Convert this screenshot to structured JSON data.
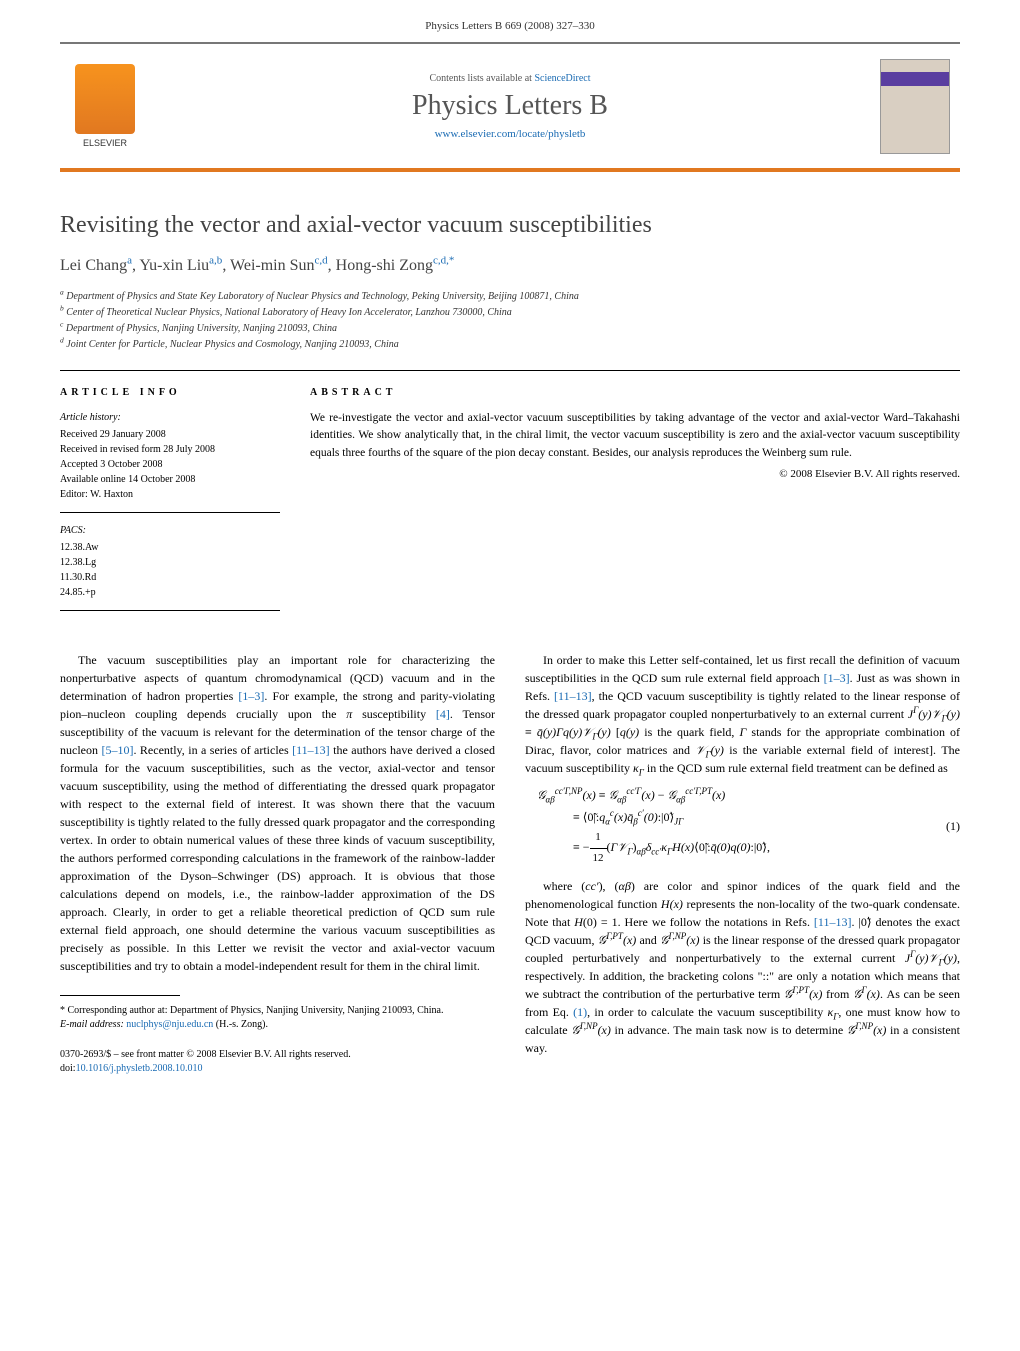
{
  "header": {
    "citation": "Physics Letters B 669 (2008) 327–330"
  },
  "banner": {
    "contents_prefix": "Contents lists available at ",
    "contents_link": "ScienceDirect",
    "journal_title": "Physics Letters B",
    "journal_url": "www.elsevier.com/locate/physletb",
    "publisher": "ELSEVIER",
    "cover_label": "PHYSICS LETTERS B"
  },
  "article": {
    "title": "Revisiting the vector and axial-vector vacuum susceptibilities"
  },
  "authors": [
    {
      "name": "Lei Chang",
      "aff": "a"
    },
    {
      "name": "Yu-xin Liu",
      "aff": "a,b"
    },
    {
      "name": "Wei-min Sun",
      "aff": "c,d"
    },
    {
      "name": "Hong-shi Zong",
      "aff": "c,d,*"
    }
  ],
  "affiliations": [
    {
      "key": "a",
      "text": "Department of Physics and State Key Laboratory of Nuclear Physics and Technology, Peking University, Beijing 100871, China"
    },
    {
      "key": "b",
      "text": "Center of Theoretical Nuclear Physics, National Laboratory of Heavy Ion Accelerator, Lanzhou 730000, China"
    },
    {
      "key": "c",
      "text": "Department of Physics, Nanjing University, Nanjing 210093, China"
    },
    {
      "key": "d",
      "text": "Joint Center for Particle, Nuclear Physics and Cosmology, Nanjing 210093, China"
    }
  ],
  "article_info": {
    "heading": "ARTICLE INFO",
    "history_label": "Article history:",
    "history": [
      "Received 29 January 2008",
      "Received in revised form 28 July 2008",
      "Accepted 3 October 2008",
      "Available online 14 October 2008"
    ],
    "editor": "Editor: W. Haxton",
    "pacs_label": "PACS:",
    "pacs": [
      "12.38.Aw",
      "12.38.Lg",
      "11.30.Rd",
      "24.85.+p"
    ]
  },
  "abstract": {
    "heading": "ABSTRACT",
    "text": "We re-investigate the vector and axial-vector vacuum susceptibilities by taking advantage of the vector and axial-vector Ward–Takahashi identities. We show analytically that, in the chiral limit, the vector vacuum susceptibility is zero and the axial-vector vacuum susceptibility equals three fourths of the square of the pion decay constant. Besides, our analysis reproduces the Weinberg sum rule.",
    "copyright": "© 2008 Elsevier B.V. All rights reserved."
  },
  "body": {
    "left_para": "The vacuum susceptibilities play an important role for characterizing the nonperturbative aspects of quantum chromodynamical (QCD) vacuum and in the determination of hadron properties [1–3]. For example, the strong and parity-violating pion–nucleon coupling depends crucially upon the π susceptibility [4]. Tensor susceptibility of the vacuum is relevant for the determination of the tensor charge of the nucleon [5–10]. Recently, in a series of articles [11–13] the authors have derived a closed formula for the vacuum susceptibilities, such as the vector, axial-vector and tensor vacuum susceptibility, using the method of differentiating the dressed quark propagator with respect to the external field of interest. It was shown there that the vacuum susceptibility is tightly related to the fully dressed quark propagator and the corresponding vertex. In order to obtain numerical values of these three kinds of vacuum susceptibility, the authors performed corresponding calculations in the framework of the rainbow-ladder approximation of the Dyson–Schwinger (DS) approach. It is obvious that those calculations depend on models, i.e., the rainbow-ladder approximation of the DS approach. Clearly, in order to get a reliable theoretical prediction of QCD sum rule external field approach, one should determine the various vacuum susceptibilities as precisely as possible. In this Letter we revisit the vector and axial-vector vacuum susceptibilities and try to obtain a model-independent result for them in the chiral limit.",
    "right_para1": "In order to make this Letter self-contained, let us first recall the definition of vacuum susceptibilities in the QCD sum rule external field approach [1–3]. Just as was shown in Refs. [11–13], the QCD vacuum susceptibility is tightly related to the linear response of the dressed quark propagator coupled nonperturbatively to an external current JΓ(y)𝒱Γ(y) ≡ q̄(y)Γq(y)𝒱Γ(y) [q(y) is the quark field, Γ stands for the appropriate combination of Dirac, flavor, color matrices and 𝒱Γ(y) is the variable external field of interest]. The vacuum susceptibility κΓ in the QCD sum rule external field treatment can be defined as",
    "right_para2": "where (cc′), (αβ) are color and spinor indices of the quark field and the phenomenological function H(x) represents the non-locality of the two-quark condensate. Note that H(0) = 1. Here we follow the notations in Refs. [11–13]. |0̃⟩ denotes the exact QCD vacuum, 𝒢Γ,PT(x) and 𝒢Γ,NP(x) is the linear response of the dressed quark propagator coupled perturbatively and nonperturbatively to the external current JΓ(y)𝒱Γ(y), respectively. In addition, the bracketing colons \"::\" are only a notation which means that we subtract the contribution of the perturbative term 𝒢Γ,PT(x) from 𝒢Γ(x). As can be seen from Eq. (1), in order to calculate the vacuum susceptibility κΓ, one must know how to calculate 𝒢Γ,NP(x) in advance. The main task now is to determine 𝒢Γ,NP(x) in a consistent way."
  },
  "equation": {
    "number": "(1)"
  },
  "footnotes": {
    "corresponding": "* Corresponding author at: Department of Physics, Nanjing University, Nanjing 210093, China.",
    "email_label": "E-mail address:",
    "email": "nuclphys@nju.edu.cn",
    "email_person": "(H.-s. Zong)."
  },
  "footer": {
    "line1": "0370-2693/$ – see front matter © 2008 Elsevier B.V. All rights reserved.",
    "doi_label": "doi:",
    "doi": "10.1016/j.physletb.2008.10.010"
  },
  "colors": {
    "orange": "#e17820",
    "link": "#1a6bb3",
    "purple": "#5a3ea0",
    "text": "#000000",
    "grey": "#555555"
  }
}
